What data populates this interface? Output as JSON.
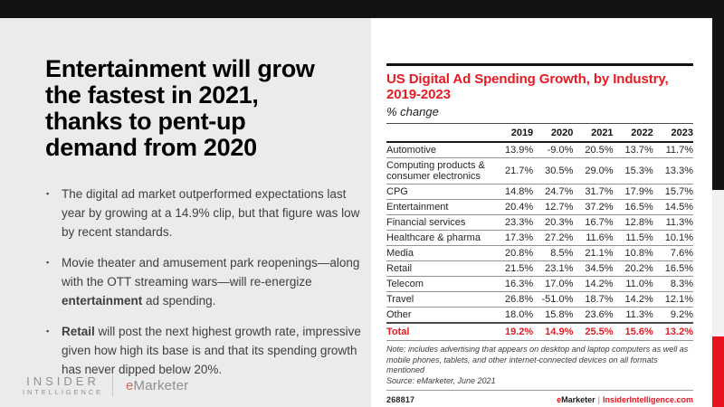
{
  "slide": {
    "headline_lines": [
      "Entertainment will grow",
      "the fastest in 2021,",
      "thanks to pent-up",
      "demand from 2020"
    ],
    "bullets": [
      {
        "pre": "The digital ad market outperformed expectations last year by growing at a 14.9% clip, but that figure was low by recent standards.",
        "bold": "",
        "post": ""
      },
      {
        "pre": "Movie theater and amusement park reopenings—along with the OTT streaming wars—will re-energize ",
        "bold": "entertainment",
        "post": " ad spending."
      },
      {
        "pre": "",
        "bold": "Retail",
        "post": " will post the next highest growth rate, impressive given how high its base is and that its spending growth has never dipped below 20%."
      }
    ],
    "bullet_marker": "▪",
    "logo": {
      "line1": "INSIDER",
      "line2": "INTELLIGENCE",
      "em_e": "e",
      "em_rest": "Marketer"
    }
  },
  "chart": {
    "title": "US Digital Ad Spending Growth, by Industry, 2019-2023",
    "subtitle": "% change",
    "note": "Note: includes advertising that appears on desktop and laptop computers as well as mobile phones, tablets, and other internet-connected devices on all formats mentioned",
    "source": "Source: eMarketer, June 2021",
    "chart_id": "268817",
    "brand": {
      "e": "e",
      "marketer": "Marketer",
      "separator": "|",
      "site": "InsiderIntelligence.com"
    }
  },
  "chart_data": {
    "type": "table",
    "title": "US Digital Ad Spending Growth, by Industry, 2019-2023",
    "unit": "% change",
    "columns": [
      "2019",
      "2020",
      "2021",
      "2022",
      "2023"
    ],
    "rows": [
      {
        "label": "Automotive",
        "values": [
          "13.9%",
          "-9.0%",
          "20.5%",
          "13.7%",
          "11.7%"
        ]
      },
      {
        "label": "Computing products & consumer electronics",
        "values": [
          "21.7%",
          "30.5%",
          "29.0%",
          "15.3%",
          "13.3%"
        ]
      },
      {
        "label": "CPG",
        "values": [
          "14.8%",
          "24.7%",
          "31.7%",
          "17.9%",
          "15.7%"
        ]
      },
      {
        "label": "Entertainment",
        "values": [
          "20.4%",
          "12.7%",
          "37.2%",
          "16.5%",
          "14.5%"
        ]
      },
      {
        "label": "Financial services",
        "values": [
          "23.3%",
          "20.3%",
          "16.7%",
          "12.8%",
          "11.3%"
        ]
      },
      {
        "label": "Healthcare & pharma",
        "values": [
          "17.3%",
          "27.2%",
          "11.6%",
          "11.5%",
          "10.1%"
        ]
      },
      {
        "label": "Media",
        "values": [
          "20.8%",
          "8.5%",
          "21.1%",
          "10.8%",
          "7.6%"
        ]
      },
      {
        "label": "Retail",
        "values": [
          "21.5%",
          "23.1%",
          "34.5%",
          "20.2%",
          "16.5%"
        ]
      },
      {
        "label": "Telecom",
        "values": [
          "16.3%",
          "17.0%",
          "14.2%",
          "11.0%",
          "8.3%"
        ]
      },
      {
        "label": "Travel",
        "values": [
          "26.8%",
          "-51.0%",
          "18.7%",
          "14.2%",
          "12.1%"
        ]
      },
      {
        "label": "Other",
        "values": [
          "18.0%",
          "15.8%",
          "23.6%",
          "11.3%",
          "9.2%"
        ]
      }
    ],
    "total_row": {
      "label": "Total",
      "values": [
        "19.2%",
        "14.9%",
        "25.5%",
        "15.6%",
        "13.2%"
      ]
    }
  },
  "colors": {
    "brand_red": "#e51b23",
    "top_bar": "#131313",
    "left_bg": "#ebebeb",
    "edge_gray": "#f2f2f2"
  }
}
